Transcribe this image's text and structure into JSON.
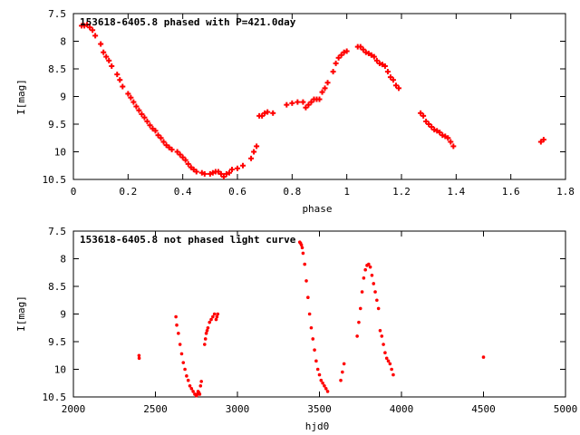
{
  "chart_data": [
    {
      "type": "scatter",
      "title": "153618-6405.8 phased with P=421.0day",
      "xlabel": "phase",
      "ylabel": "I[mag]",
      "xlim": [
        0,
        1.8
      ],
      "ylim": [
        10.5,
        7.5
      ],
      "y_inverted": true,
      "grid": false,
      "x_ticks": [
        "0",
        "0.2",
        "0.4",
        "0.6",
        "0.8",
        "1",
        "1.2",
        "1.4",
        "1.6",
        "1.8"
      ],
      "y_ticks": [
        "7.5",
        "8",
        "8.5",
        "9",
        "9.5",
        "10",
        "10.5"
      ],
      "marker_color": "#ff0000",
      "marker": "plus",
      "series": [
        {
          "x": [
            0.03,
            0.04,
            0.05,
            0.06,
            0.07,
            0.08,
            0.1,
            0.11,
            0.12,
            0.13,
            0.14,
            0.16,
            0.17,
            0.18,
            0.2,
            0.21,
            0.22,
            0.23,
            0.24,
            0.25,
            0.26,
            0.27,
            0.28,
            0.29,
            0.3,
            0.31,
            0.32,
            0.33,
            0.34,
            0.35,
            0.36,
            0.38,
            0.39,
            0.4,
            0.41,
            0.42,
            0.43,
            0.44,
            0.45,
            0.47,
            0.48,
            0.5,
            0.51,
            0.52,
            0.53,
            0.54,
            0.55,
            0.56,
            0.57,
            0.58,
            0.6,
            0.62,
            0.65,
            0.66,
            0.67,
            0.68,
            0.69,
            0.7,
            0.71,
            0.73,
            0.78,
            0.8,
            0.82,
            0.84,
            0.85,
            0.86,
            0.87,
            0.88,
            0.89,
            0.9,
            0.91,
            0.92,
            0.93,
            0.95,
            0.96,
            0.97,
            0.98,
            0.99,
            1.0,
            1.04,
            1.05,
            1.06,
            1.07,
            1.08,
            1.09,
            1.1,
            1.11,
            1.12,
            1.13,
            1.14,
            1.15,
            1.16,
            1.17,
            1.18,
            1.19,
            1.27,
            1.28,
            1.29,
            1.3,
            1.31,
            1.32,
            1.33,
            1.34,
            1.35,
            1.36,
            1.37,
            1.38,
            1.39,
            1.71,
            1.72
          ],
          "y": [
            7.72,
            7.72,
            7.7,
            7.75,
            7.8,
            7.9,
            8.05,
            8.2,
            8.28,
            8.35,
            8.45,
            8.6,
            8.7,
            8.82,
            8.95,
            9.02,
            9.1,
            9.18,
            9.25,
            9.32,
            9.38,
            9.45,
            9.52,
            9.58,
            9.62,
            9.7,
            9.75,
            9.82,
            9.88,
            9.92,
            9.96,
            10.0,
            10.05,
            10.1,
            10.15,
            10.22,
            10.28,
            10.32,
            10.36,
            10.38,
            10.4,
            10.4,
            10.38,
            10.36,
            10.36,
            10.4,
            10.45,
            10.4,
            10.38,
            10.32,
            10.3,
            10.25,
            10.12,
            10.0,
            9.9,
            9.35,
            9.35,
            9.3,
            9.28,
            9.3,
            9.15,
            9.12,
            9.1,
            9.1,
            9.2,
            9.15,
            9.1,
            9.05,
            9.05,
            9.05,
            8.92,
            8.85,
            8.75,
            8.55,
            8.4,
            8.3,
            8.25,
            8.2,
            8.18,
            8.1,
            8.1,
            8.15,
            8.2,
            8.22,
            8.25,
            8.28,
            8.35,
            8.4,
            8.42,
            8.45,
            8.55,
            8.65,
            8.7,
            8.8,
            8.85,
            9.3,
            9.35,
            9.45,
            9.5,
            9.55,
            9.6,
            9.62,
            9.65,
            9.7,
            9.72,
            9.75,
            9.82,
            9.9,
            9.82,
            9.78
          ]
        }
      ]
    },
    {
      "type": "scatter",
      "title": "153618-6405.8 not phased light curve",
      "xlabel": "hjd0",
      "ylabel": "I[mag]",
      "xlim": [
        2000,
        5000
      ],
      "ylim": [
        10.5,
        7.5
      ],
      "y_inverted": true,
      "grid": false,
      "x_ticks": [
        "2000",
        "2500",
        "3000",
        "3500",
        "4000",
        "4500",
        "5000"
      ],
      "y_ticks": [
        "7.5",
        "8",
        "8.5",
        "9",
        "9.5",
        "10",
        "10.5"
      ],
      "marker_color": "#ff0000",
      "marker": "dot",
      "series": [
        {
          "x": [
            2400,
            2401,
            2625,
            2630,
            2640,
            2650,
            2660,
            2670,
            2680,
            2690,
            2700,
            2710,
            2720,
            2730,
            2740,
            2750,
            2755,
            2760,
            2765,
            2770,
            2775,
            2780,
            2800,
            2805,
            2810,
            2815,
            2820,
            2830,
            2840,
            2850,
            2860,
            2870,
            2875,
            2880,
            3380,
            3385,
            3390,
            3395,
            3400,
            3410,
            3420,
            3430,
            3440,
            3450,
            3460,
            3470,
            3480,
            3490,
            3500,
            3510,
            3520,
            3530,
            3540,
            3550,
            3630,
            3640,
            3650,
            3730,
            3740,
            3750,
            3760,
            3770,
            3780,
            3790,
            3800,
            3810,
            3820,
            3830,
            3840,
            3850,
            3860,
            3870,
            3880,
            3890,
            3900,
            3910,
            3920,
            3930,
            3940,
            3950,
            4500
          ],
          "y": [
            9.75,
            9.8,
            9.05,
            9.2,
            9.35,
            9.55,
            9.72,
            9.88,
            10.0,
            10.12,
            10.2,
            10.3,
            10.35,
            10.4,
            10.45,
            10.48,
            10.45,
            10.4,
            10.42,
            10.45,
            10.3,
            10.22,
            9.55,
            9.45,
            9.35,
            9.3,
            9.25,
            9.15,
            9.1,
            9.05,
            9.0,
            9.1,
            9.05,
            9.0,
            7.7,
            7.72,
            7.75,
            7.8,
            7.9,
            8.1,
            8.4,
            8.7,
            9.0,
            9.25,
            9.45,
            9.65,
            9.85,
            10.0,
            10.1,
            10.2,
            10.25,
            10.3,
            10.35,
            10.4,
            10.2,
            10.05,
            9.9,
            9.4,
            9.15,
            8.9,
            8.6,
            8.35,
            8.2,
            8.12,
            8.1,
            8.15,
            8.3,
            8.45,
            8.6,
            8.75,
            8.9,
            9.3,
            9.4,
            9.55,
            9.7,
            9.8,
            9.85,
            9.9,
            10.0,
            10.1,
            9.78
          ]
        }
      ]
    }
  ]
}
